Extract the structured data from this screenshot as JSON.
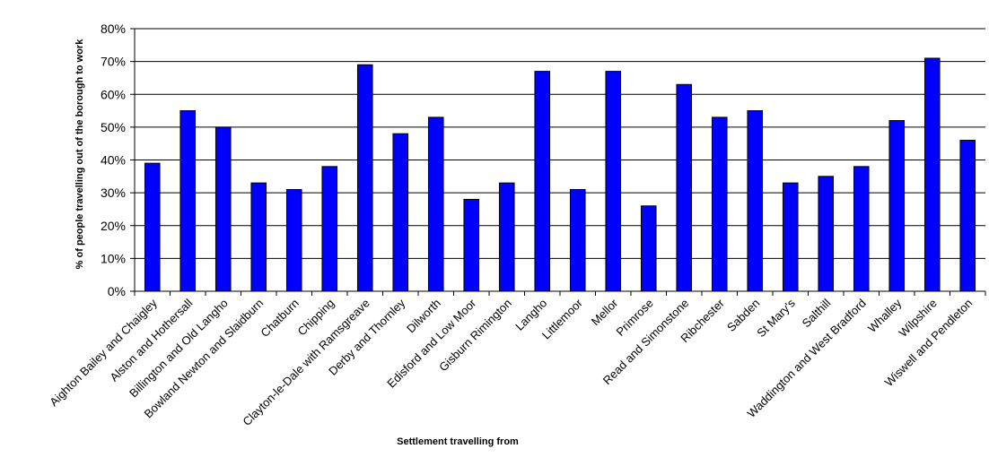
{
  "chart_data": {
    "type": "bar",
    "title": "",
    "xlabel": "Settlement travelling from",
    "ylabel": "% of people travelling out of the borough to work",
    "ylim": [
      0,
      80
    ],
    "yticks": [
      "0%",
      "10%",
      "20%",
      "30%",
      "40%",
      "50%",
      "60%",
      "70%",
      "80%"
    ],
    "grid": true,
    "legend": "none",
    "bar_color": "#0000ff",
    "categories": [
      "Aighton Bailey and Chaigley",
      "Alston and Hothersall",
      "Billington and Old Langho",
      "Bowland Newton and Slaidburn",
      "Chatburn",
      "Chipping",
      "Clayton-le-Dale with Ramsgreave",
      "Derby and Thornley",
      "Dilworth",
      "Edisford and Low Moor",
      "Gisburn Rimington",
      "Langho",
      "Littlemoor",
      "Mellor",
      "Primrose",
      "Read and Simonstone",
      "Ribchester",
      "Sabden",
      "St Mary's",
      "Salthill",
      "Waddington and West Bradford",
      "Whalley",
      "Wilpshire",
      "Wiswell and Pendleton"
    ],
    "values": [
      39,
      55,
      50,
      33,
      31,
      38,
      69,
      48,
      53,
      28,
      33,
      67,
      31,
      67,
      26,
      63,
      53,
      55,
      33,
      35,
      38,
      52,
      71,
      46
    ]
  }
}
